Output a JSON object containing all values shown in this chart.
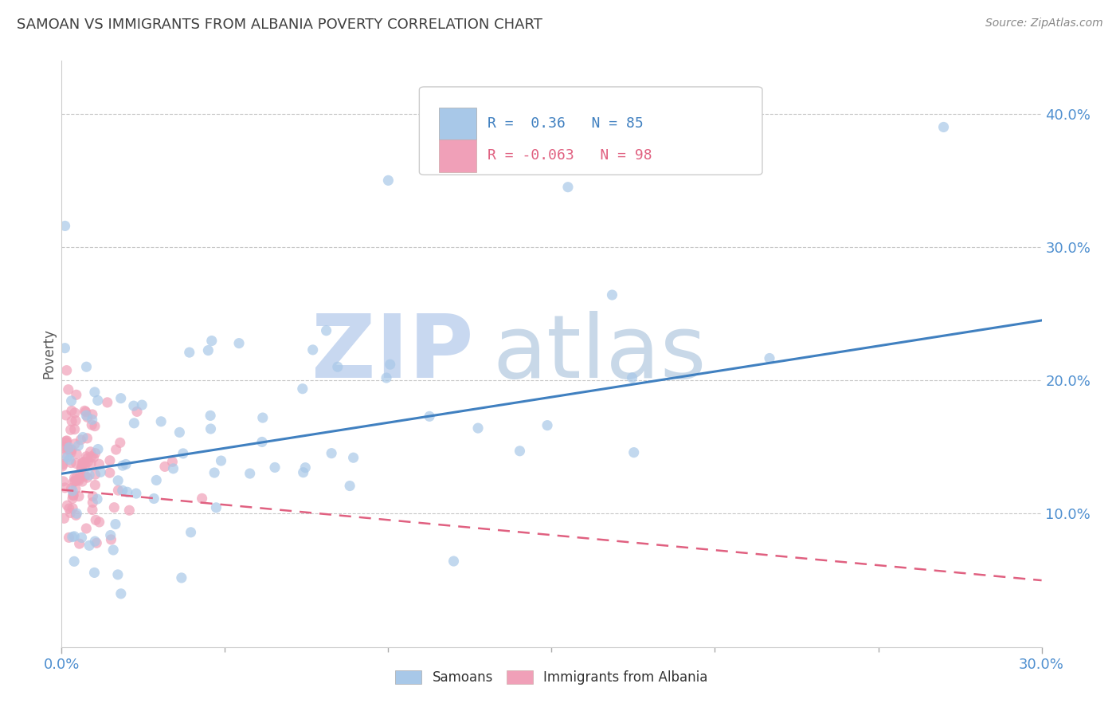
{
  "title": "SAMOAN VS IMMIGRANTS FROM ALBANIA POVERTY CORRELATION CHART",
  "source": "Source: ZipAtlas.com",
  "xlim": [
    0.0,
    0.3
  ],
  "ylim": [
    0.0,
    0.44
  ],
  "ylabel": "Poverty",
  "samoan_R": 0.36,
  "samoan_N": 85,
  "albania_R": -0.063,
  "albania_N": 98,
  "samoan_color": "#a8c8e8",
  "albania_color": "#f0a0b8",
  "samoan_line_color": "#4080c0",
  "albania_line_color": "#e06080",
  "background_color": "#ffffff",
  "grid_color": "#c8c8c8",
  "title_color": "#404040",
  "watermark_zip_color": "#c8d8f0",
  "watermark_atlas_color": "#c8d8e8",
  "tick_color": "#5090d0",
  "samoan_line_y0": 0.13,
  "samoan_line_y1": 0.245,
  "albania_line_y0": 0.118,
  "albania_line_y1": 0.05
}
